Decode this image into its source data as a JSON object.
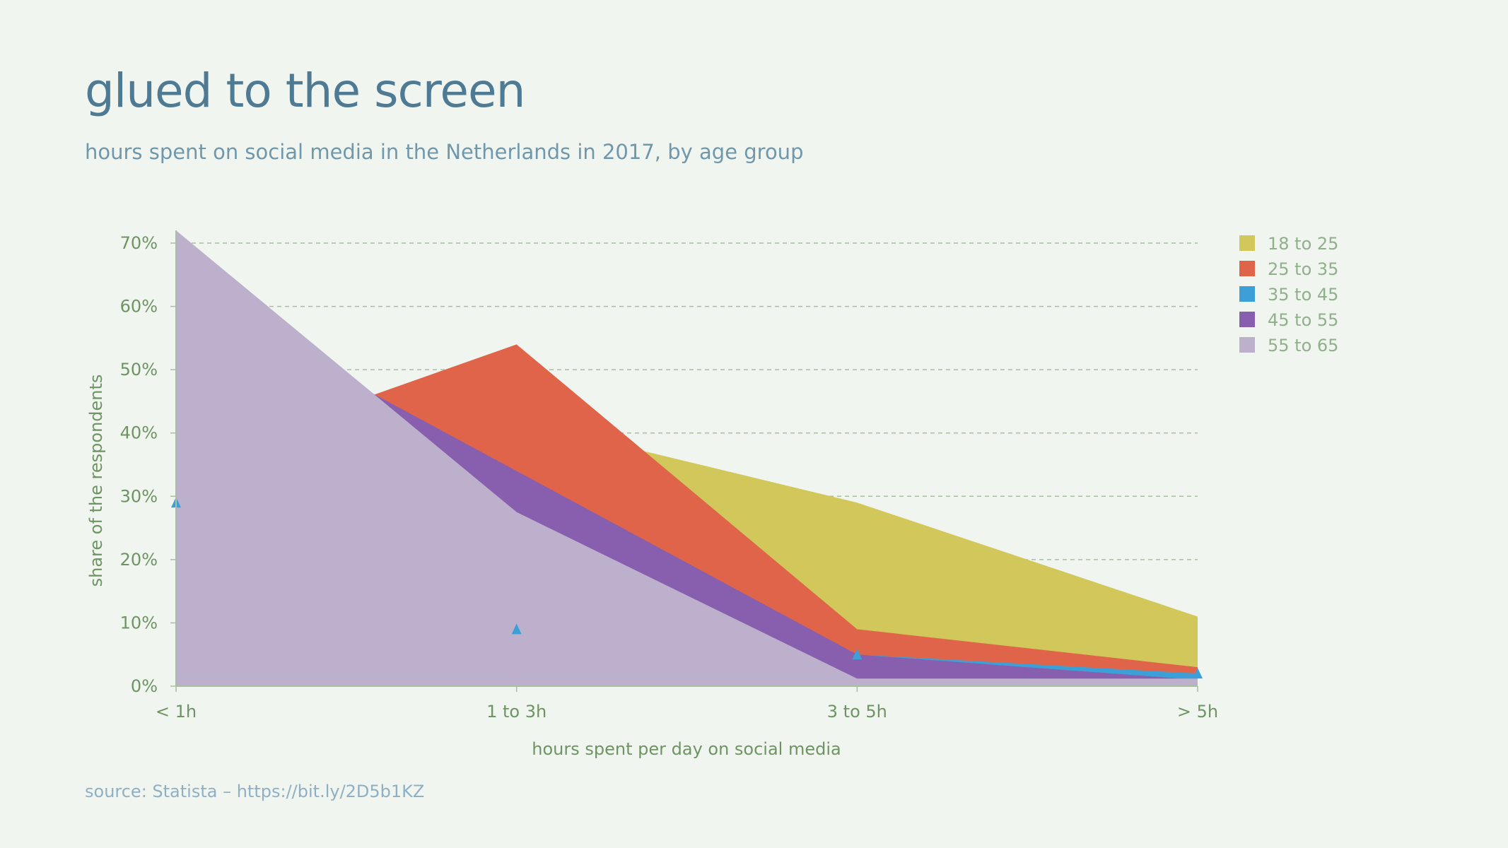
{
  "title": "glued to the screen",
  "subtitle": "hours spent on social media in the Netherlands in 2017, by age group",
  "source": "source: Statista – https://bit.ly/2D5b1KZ",
  "chart_data": {
    "type": "area",
    "stacked": false,
    "categories": [
      "< 1h",
      "1 to 3h",
      "3 to 5h",
      "> 5h"
    ],
    "xlabel": "hours spent  per day on social media",
    "ylabel": "share of the respondents",
    "ylim": [
      0,
      70
    ],
    "yticks": [
      "0%",
      "10%",
      "20%",
      "30%",
      "40%",
      "50%",
      "60%",
      "70%"
    ],
    "grid": "horizontal dashed",
    "legend_position": "right",
    "series": [
      {
        "name": "18 to 25",
        "color": "#d1c75a",
        "values": [
          25,
          42,
          29,
          11
        ]
      },
      {
        "name": "25 to 35",
        "color": "#e0644a",
        "values": [
          35,
          54,
          9,
          3
        ]
      },
      {
        "name": "35 to 45",
        "color": "#3d9fd8",
        "values": [
          29,
          9,
          5,
          2
        ],
        "marker": "triangle"
      },
      {
        "name": "45 to 55",
        "color": "#875fae",
        "values": [
          63,
          34,
          5,
          1
        ]
      },
      {
        "name": "55 to 65",
        "color": "#bdb0cc",
        "values": [
          72,
          27.5,
          1.2,
          1.2
        ]
      }
    ]
  }
}
